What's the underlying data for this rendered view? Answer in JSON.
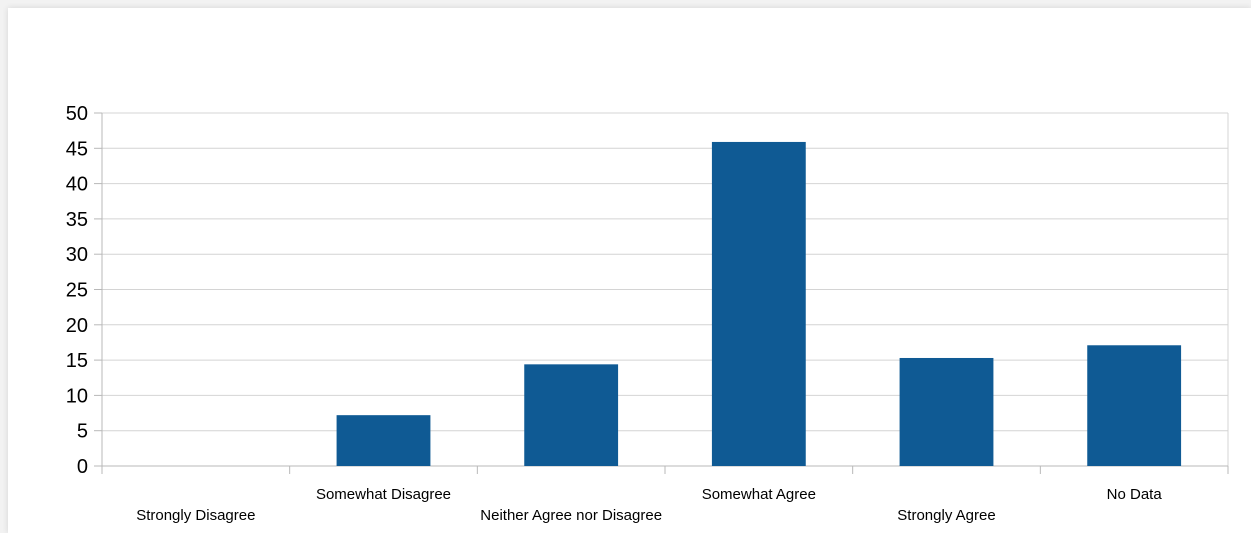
{
  "chart_data": {
    "type": "bar",
    "title": "",
    "xlabel": "",
    "ylabel": "",
    "categories": [
      "Strongly Disagree",
      "Somewhat Disagree",
      "Neither Agree nor Disagree",
      "Somewhat Agree",
      "Strongly Agree",
      "No Data"
    ],
    "values": [
      0,
      7.2,
      14.4,
      45.9,
      15.3,
      17.1
    ],
    "ylim": [
      0,
      50
    ],
    "yticks": [
      0,
      5,
      10,
      15,
      20,
      25,
      30,
      35,
      40,
      45,
      50
    ],
    "grid": true,
    "legend": "none",
    "bar_color": "#0f5a94",
    "grid_color": "#d4d4d4"
  }
}
